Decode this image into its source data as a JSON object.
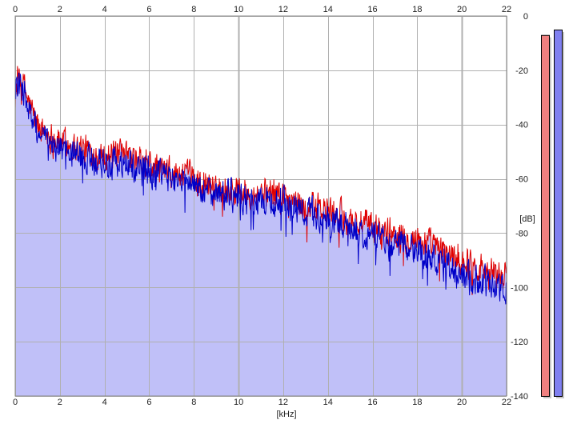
{
  "chart_data": {
    "type": "area",
    "xlabel": "[kHz]",
    "ylabel": "[dB]",
    "xlim": [
      0,
      22
    ],
    "ylim": [
      -140,
      0
    ],
    "x_ticks": [
      "0",
      "2",
      "4",
      "6",
      "8",
      "10",
      "12",
      "14",
      "16",
      "18",
      "20",
      "22"
    ],
    "y_ticks": [
      "0",
      "-20",
      "-40",
      "-60",
      "-80",
      "-100",
      "-120",
      "-140"
    ],
    "grid": true,
    "colors": {
      "red_channel": "#e00000",
      "blue_channel": "#0000c8",
      "area_fill": "#c0c0f8",
      "red_bar": "#f08080",
      "blue_bar": "#8080f0",
      "grid": "#b0b0b0"
    },
    "series": [
      {
        "x": [
          0,
          0.2,
          0.4,
          0.6,
          1,
          1.5,
          2,
          3,
          4,
          5,
          6,
          7,
          8,
          9,
          10,
          11,
          12,
          13,
          14,
          15,
          16,
          17,
          18,
          19,
          20,
          21,
          22
        ],
        "values": [
          -24,
          -24,
          -26,
          -32,
          -40,
          -44,
          -46,
          -49,
          -51,
          -52,
          -55,
          -58,
          -60,
          -63,
          -64,
          -65,
          -66,
          -70,
          -72,
          -75,
          -78,
          -80,
          -82,
          -86,
          -90,
          -93,
          -96
        ]
      },
      {
        "x": [
          0,
          0.2,
          0.4,
          0.6,
          1,
          1.5,
          2,
          3,
          4,
          5,
          6,
          7,
          8,
          9,
          10,
          11,
          12,
          13,
          14,
          15,
          16,
          17,
          18,
          19,
          20,
          21,
          22
        ],
        "values": [
          -26,
          -26,
          -28,
          -35,
          -43,
          -47,
          -49,
          -52,
          -54,
          -55,
          -57,
          -60,
          -62,
          -65,
          -67,
          -68,
          -69,
          -72,
          -75,
          -78,
          -81,
          -84,
          -86,
          -90,
          -95,
          -98,
          -100
        ]
      }
    ],
    "level_bars": [
      {
        "level": -7
      },
      {
        "level": -5
      }
    ]
  }
}
